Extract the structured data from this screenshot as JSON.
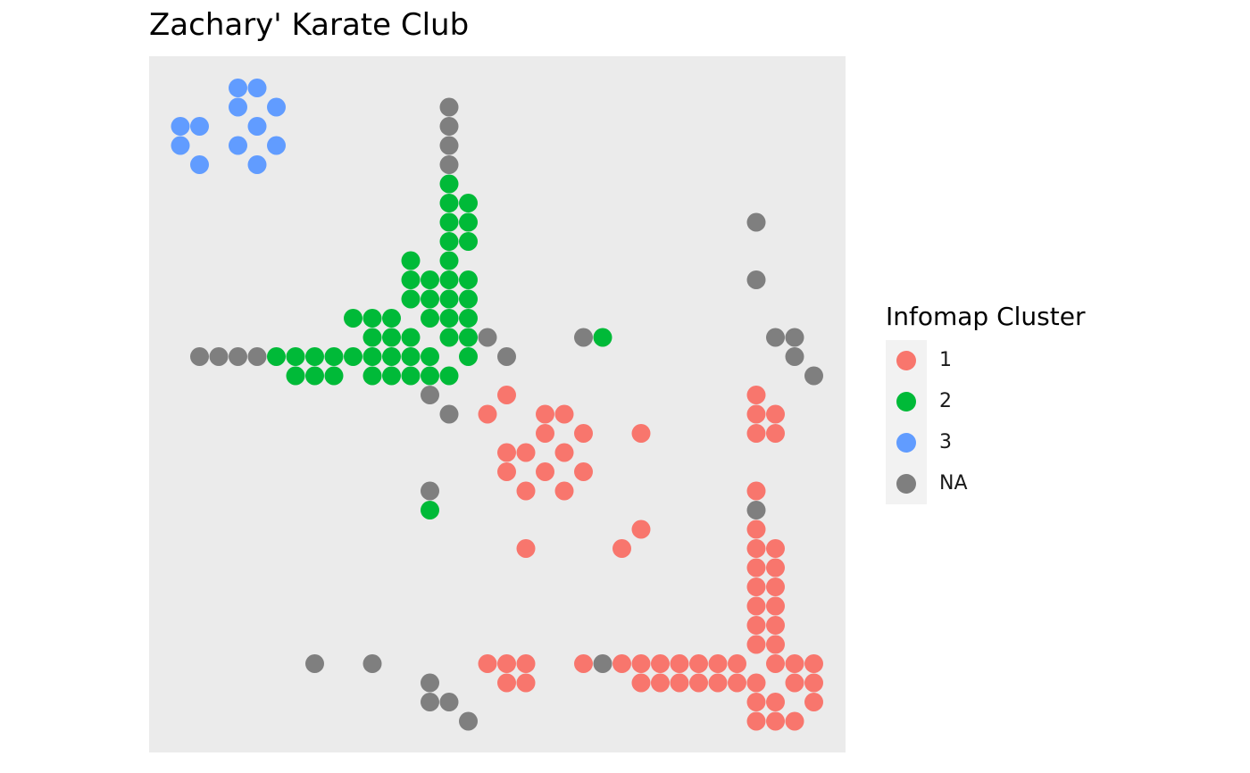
{
  "chart_data": {
    "type": "scatter",
    "title": "Zachary' Karate Club",
    "legend": {
      "title": "Infomap Cluster",
      "placement": "right",
      "entries": [
        {
          "label": "1",
          "color": "#F8766D"
        },
        {
          "label": "2",
          "color": "#00BA38"
        },
        {
          "label": "3",
          "color": "#619CFF"
        },
        {
          "label": "NA",
          "color": "#7F7F7F"
        }
      ]
    },
    "xlim": [
      0,
      35
    ],
    "ylim": [
      0,
      35
    ],
    "grid": false,
    "panel_background": "#EBEBEB",
    "rows": [
      {
        "y": 33,
        "points": [
          [
            4,
            "3"
          ],
          [
            5,
            "3"
          ]
        ]
      },
      {
        "y": 32,
        "points": [
          [
            4,
            "3"
          ],
          [
            6,
            "3"
          ],
          [
            15,
            "NA"
          ]
        ]
      },
      {
        "y": 31,
        "points": [
          [
            1,
            "3"
          ],
          [
            2,
            "3"
          ],
          [
            5,
            "3"
          ],
          [
            15,
            "NA"
          ]
        ]
      },
      {
        "y": 30,
        "points": [
          [
            1,
            "3"
          ],
          [
            4,
            "3"
          ],
          [
            6,
            "3"
          ],
          [
            15,
            "NA"
          ]
        ]
      },
      {
        "y": 29,
        "points": [
          [
            2,
            "3"
          ],
          [
            5,
            "3"
          ],
          [
            15,
            "NA"
          ]
        ]
      },
      {
        "y": 28,
        "points": [
          [
            15,
            "2"
          ]
        ]
      },
      {
        "y": 27,
        "points": [
          [
            15,
            "2"
          ],
          [
            16,
            "2"
          ]
        ]
      },
      {
        "y": 26,
        "points": [
          [
            15,
            "2"
          ],
          [
            16,
            "2"
          ],
          [
            31,
            "NA"
          ]
        ]
      },
      {
        "y": 25,
        "points": [
          [
            15,
            "2"
          ],
          [
            16,
            "2"
          ]
        ]
      },
      {
        "y": 24,
        "points": [
          [
            13,
            "2"
          ],
          [
            15,
            "2"
          ]
        ]
      },
      {
        "y": 23,
        "points": [
          [
            13,
            "2"
          ],
          [
            14,
            "2"
          ],
          [
            15,
            "2"
          ],
          [
            16,
            "2"
          ],
          [
            31,
            "NA"
          ]
        ]
      },
      {
        "y": 22,
        "points": [
          [
            13,
            "2"
          ],
          [
            14,
            "2"
          ],
          [
            15,
            "2"
          ],
          [
            16,
            "2"
          ]
        ]
      },
      {
        "y": 21,
        "points": [
          [
            10,
            "2"
          ],
          [
            11,
            "2"
          ],
          [
            12,
            "2"
          ],
          [
            14,
            "2"
          ],
          [
            15,
            "2"
          ],
          [
            16,
            "2"
          ]
        ]
      },
      {
        "y": 20,
        "points": [
          [
            11,
            "2"
          ],
          [
            12,
            "2"
          ],
          [
            13,
            "2"
          ],
          [
            15,
            "2"
          ],
          [
            16,
            "2"
          ],
          [
            17,
            "NA"
          ],
          [
            22,
            "NA"
          ],
          [
            23,
            "2"
          ],
          [
            32,
            "NA"
          ],
          [
            33,
            "NA"
          ]
        ]
      },
      {
        "y": 19,
        "points": [
          [
            2,
            "NA"
          ],
          [
            3,
            "NA"
          ],
          [
            4,
            "NA"
          ],
          [
            5,
            "NA"
          ],
          [
            6,
            "2"
          ],
          [
            7,
            "2"
          ],
          [
            8,
            "2"
          ],
          [
            9,
            "2"
          ],
          [
            10,
            "2"
          ],
          [
            11,
            "2"
          ],
          [
            12,
            "2"
          ],
          [
            13,
            "2"
          ],
          [
            14,
            "2"
          ],
          [
            16,
            "2"
          ],
          [
            18,
            "NA"
          ],
          [
            33,
            "NA"
          ]
        ]
      },
      {
        "y": 18,
        "points": [
          [
            7,
            "2"
          ],
          [
            8,
            "2"
          ],
          [
            9,
            "2"
          ],
          [
            11,
            "2"
          ],
          [
            12,
            "2"
          ],
          [
            13,
            "2"
          ],
          [
            14,
            "2"
          ],
          [
            15,
            "2"
          ],
          [
            34,
            "NA"
          ]
        ]
      },
      {
        "y": 17,
        "points": [
          [
            14,
            "NA"
          ],
          [
            18,
            "1"
          ],
          [
            31,
            "1"
          ]
        ]
      },
      {
        "y": 16,
        "points": [
          [
            15,
            "NA"
          ],
          [
            17,
            "1"
          ],
          [
            20,
            "1"
          ],
          [
            21,
            "1"
          ],
          [
            31,
            "1"
          ],
          [
            32,
            "1"
          ]
        ]
      },
      {
        "y": 15,
        "points": [
          [
            20,
            "1"
          ],
          [
            22,
            "1"
          ],
          [
            25,
            "1"
          ],
          [
            31,
            "1"
          ],
          [
            32,
            "1"
          ]
        ]
      },
      {
        "y": 14,
        "points": [
          [
            18,
            "1"
          ],
          [
            19,
            "1"
          ],
          [
            21,
            "1"
          ]
        ]
      },
      {
        "y": 13,
        "points": [
          [
            18,
            "1"
          ],
          [
            20,
            "1"
          ],
          [
            22,
            "1"
          ]
        ]
      },
      {
        "y": 12,
        "points": [
          [
            14,
            "NA"
          ],
          [
            19,
            "1"
          ],
          [
            21,
            "1"
          ],
          [
            31,
            "1"
          ]
        ]
      },
      {
        "y": 11,
        "points": [
          [
            14,
            "2"
          ],
          [
            31,
            "NA"
          ]
        ]
      },
      {
        "y": 10,
        "points": [
          [
            25,
            "1"
          ],
          [
            31,
            "1"
          ]
        ]
      },
      {
        "y": 9,
        "points": [
          [
            19,
            "1"
          ],
          [
            24,
            "1"
          ],
          [
            31,
            "1"
          ],
          [
            32,
            "1"
          ]
        ]
      },
      {
        "y": 8,
        "points": [
          [
            31,
            "1"
          ],
          [
            32,
            "1"
          ]
        ]
      },
      {
        "y": 7,
        "points": [
          [
            31,
            "1"
          ],
          [
            32,
            "1"
          ]
        ]
      },
      {
        "y": 6,
        "points": [
          [
            31,
            "1"
          ],
          [
            32,
            "1"
          ]
        ]
      },
      {
        "y": 5,
        "points": [
          [
            31,
            "1"
          ],
          [
            32,
            "1"
          ]
        ]
      },
      {
        "y": 4,
        "points": [
          [
            31,
            "1"
          ],
          [
            32,
            "1"
          ]
        ]
      },
      {
        "y": 3,
        "points": [
          [
            8,
            "NA"
          ],
          [
            11,
            "NA"
          ],
          [
            17,
            "1"
          ],
          [
            18,
            "1"
          ],
          [
            19,
            "1"
          ],
          [
            22,
            "1"
          ],
          [
            23,
            "NA"
          ],
          [
            24,
            "1"
          ],
          [
            25,
            "1"
          ],
          [
            26,
            "1"
          ],
          [
            27,
            "1"
          ],
          [
            28,
            "1"
          ],
          [
            29,
            "1"
          ],
          [
            30,
            "1"
          ],
          [
            32,
            "1"
          ],
          [
            33,
            "1"
          ],
          [
            34,
            "1"
          ]
        ]
      },
      {
        "y": 2,
        "points": [
          [
            14,
            "NA"
          ],
          [
            18,
            "1"
          ],
          [
            19,
            "1"
          ],
          [
            25,
            "1"
          ],
          [
            26,
            "1"
          ],
          [
            27,
            "1"
          ],
          [
            28,
            "1"
          ],
          [
            29,
            "1"
          ],
          [
            30,
            "1"
          ],
          [
            31,
            "1"
          ],
          [
            33,
            "1"
          ],
          [
            34,
            "1"
          ]
        ]
      },
      {
        "y": 1,
        "points": [
          [
            14,
            "NA"
          ],
          [
            15,
            "NA"
          ],
          [
            31,
            "1"
          ],
          [
            32,
            "1"
          ],
          [
            34,
            "1"
          ]
        ]
      },
      {
        "y": 0,
        "points": [
          [
            16,
            "NA"
          ],
          [
            31,
            "1"
          ],
          [
            32,
            "1"
          ],
          [
            33,
            "1"
          ]
        ]
      }
    ]
  }
}
